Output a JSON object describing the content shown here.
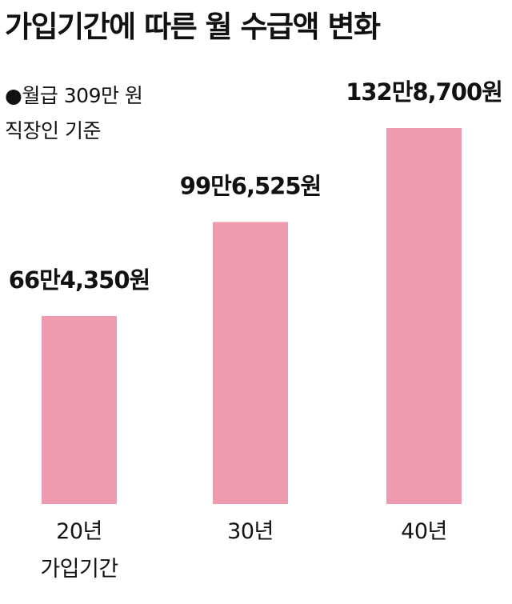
{
  "title": "가입기간에 따른 월 수급액 변화",
  "notes": {
    "line1": "●월급 309만 원",
    "line2": "직장인 기준"
  },
  "chart_data": {
    "type": "bar",
    "categories": [
      "20년",
      "30년",
      "40년"
    ],
    "x_axis_caption": "가입기간",
    "values": [
      664350,
      996525,
      1328700
    ],
    "value_labels": [
      "66만4,350원",
      "99만6,525원",
      "132만8,700원"
    ],
    "bar_color": "#ee9bb0",
    "ylim": [
      0,
      1328700
    ],
    "grid": false,
    "legend": "none"
  }
}
